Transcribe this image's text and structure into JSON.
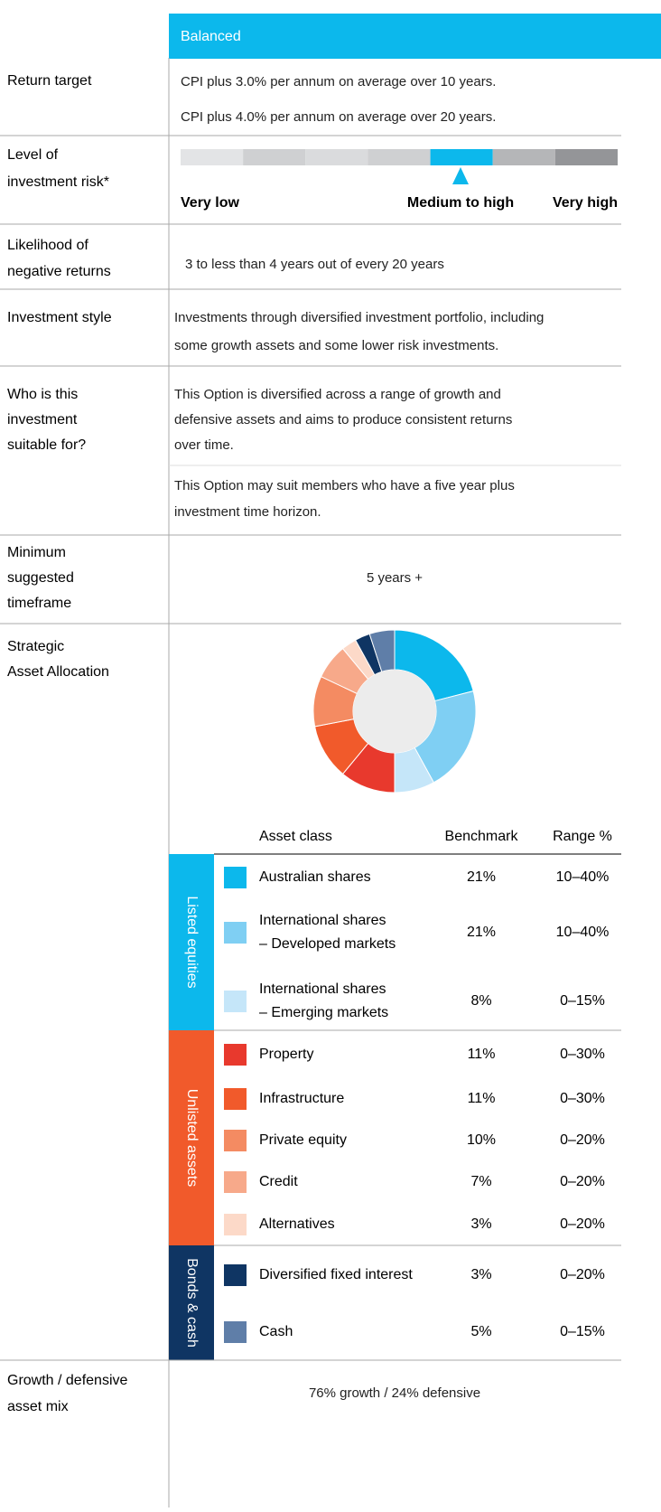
{
  "header": {
    "title": "Balanced"
  },
  "return_target": {
    "label": [
      "Return target"
    ],
    "lines": [
      "CPI plus 3.0% per annum on average over 10 years.",
      "CPI plus 4.0% per annum on average over 20 years."
    ]
  },
  "risk": {
    "label": [
      "Level of",
      "investment risk*"
    ],
    "scale_labels": [
      "Very low",
      "Medium to high",
      "Very high"
    ]
  },
  "likelihood": {
    "label": [
      "Likelihood of",
      "negative returns"
    ],
    "text": "3 to less than 4 years out of every 20 years"
  },
  "style": {
    "label": [
      "Investment style"
    ],
    "lines": [
      "Investments through diversified investment portfolio, including",
      "some growth assets and some lower risk investments."
    ]
  },
  "suitable": {
    "label": [
      "Who is this",
      "investment",
      "suitable for?"
    ],
    "lines": [
      "This Option is diversified across a range of growth and",
      "defensive assets and aims to produce consistent returns",
      "over time.",
      "This Option may suit members who have a five year plus",
      "investment time horizon."
    ]
  },
  "timeframe": {
    "label": [
      "Minimum",
      "suggested",
      "timeframe"
    ],
    "text": "5 years +"
  },
  "allocation": {
    "label": [
      "Strategic",
      "Asset Allocation"
    ],
    "columns": [
      "Asset class",
      "Benchmark",
      "Range %"
    ],
    "groups": [
      {
        "name": "Listed equities",
        "color": "#0cb8ec",
        "assets": [
          {
            "name": [
              "Australian shares"
            ],
            "color": "#0cb8ec",
            "benchmark": 21,
            "benchmark_label": "21%",
            "range": "10–40%"
          },
          {
            "name": [
              "International shares",
              "– Developed markets"
            ],
            "color": "#7fcff3",
            "benchmark": 21,
            "benchmark_label": "21%",
            "range": "10–40%"
          },
          {
            "name": [
              "International shares",
              "– Emerging markets"
            ],
            "color": "#c5e6f9",
            "benchmark": 8,
            "benchmark_label": "8%",
            "range": "0–15%"
          }
        ]
      },
      {
        "name": "Unlisted assets",
        "color": "#f15a2b",
        "assets": [
          {
            "name": [
              "Property"
            ],
            "color": "#e8392d",
            "benchmark": 11,
            "benchmark_label": "11%",
            "range": "0–30%"
          },
          {
            "name": [
              "Infrastructure"
            ],
            "color": "#f15a2b",
            "benchmark": 11,
            "benchmark_label": "11%",
            "range": "0–30%"
          },
          {
            "name": [
              "Private equity"
            ],
            "color": "#f48b62",
            "benchmark": 10,
            "benchmark_label": "10%",
            "range": "0–20%"
          },
          {
            "name": [
              "Credit"
            ],
            "color": "#f7a98a",
            "benchmark": 7,
            "benchmark_label": "7%",
            "range": "0–20%"
          },
          {
            "name": [
              "Alternatives"
            ],
            "color": "#fcd9c8",
            "benchmark": 3,
            "benchmark_label": "3%",
            "range": "0–20%"
          }
        ]
      },
      {
        "name": "Bonds & cash",
        "color": "#0f3563",
        "assets": [
          {
            "name": [
              "Diversified fixed interest"
            ],
            "color": "#0f3563",
            "benchmark": 3,
            "benchmark_label": "3%",
            "range": "0–20%"
          },
          {
            "name": [
              "Cash"
            ],
            "color": "#5f7ea8",
            "benchmark": 5,
            "benchmark_label": "5%",
            "range": "0–15%"
          }
        ]
      }
    ]
  },
  "mix": {
    "label": [
      "Growth / defensive",
      "asset mix"
    ],
    "text": "76% growth / 24% defensive"
  }
}
